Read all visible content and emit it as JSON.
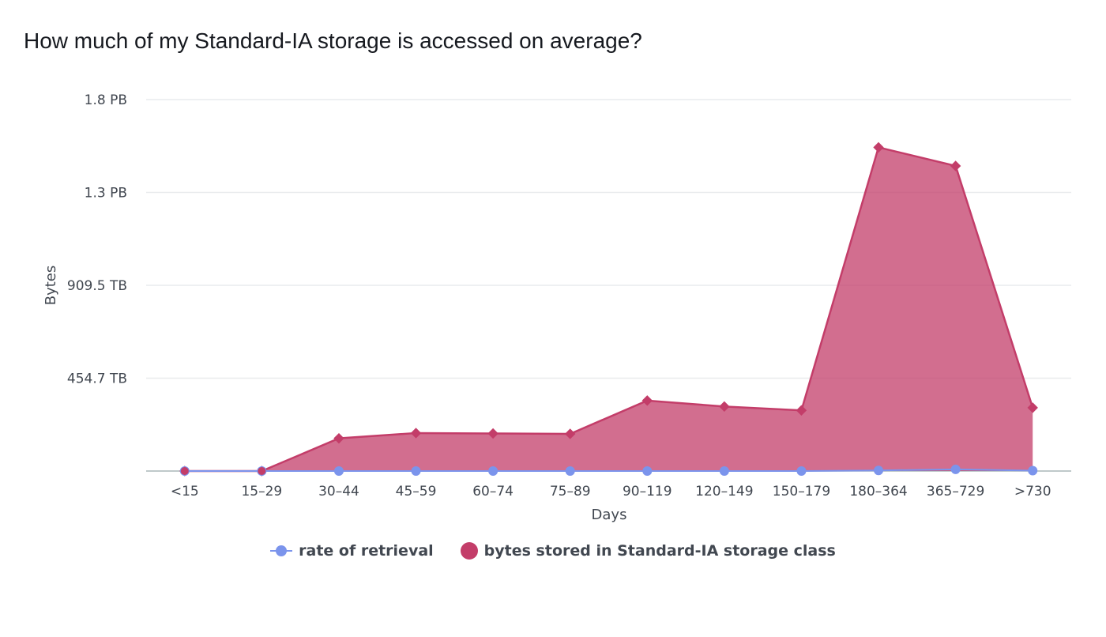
{
  "title": "How much of my Standard-IA storage is accessed on average?",
  "chart_data": {
    "type": "area",
    "categories": [
      "<15",
      "15–29",
      "30–44",
      "45–59",
      "60–74",
      "75–89",
      "90–119",
      "120–149",
      "150–179",
      "180–364",
      "365–729",
      ">730"
    ],
    "xlabel": "Days",
    "ylabel": "Bytes",
    "y_ticks": [
      {
        "value": 0,
        "label": ""
      },
      {
        "value": 454.7,
        "label": "454.7 TB"
      },
      {
        "value": 909.5,
        "label": "909.5 TB"
      },
      {
        "value": 1364.2,
        "label": "1.3 PB"
      },
      {
        "value": 1818.9,
        "label": "1.8 PB"
      }
    ],
    "ylim": [
      0,
      1818.9
    ],
    "y_unit": "TB",
    "grid": true,
    "legend_position": "bottom",
    "series": [
      {
        "name": "rate of retrieval",
        "style": "line",
        "marker": "circle",
        "color": "#7b94ec",
        "values": [
          0,
          0,
          0,
          0,
          0,
          0,
          0,
          0,
          0,
          3,
          8,
          2
        ]
      },
      {
        "name": "bytes stored in Standard-IA storage class",
        "style": "area",
        "marker": "diamond",
        "color": "#c33d69",
        "values": [
          0,
          0,
          160,
          186,
          184,
          182,
          345,
          316,
          297,
          1585,
          1494,
          310
        ]
      }
    ]
  }
}
